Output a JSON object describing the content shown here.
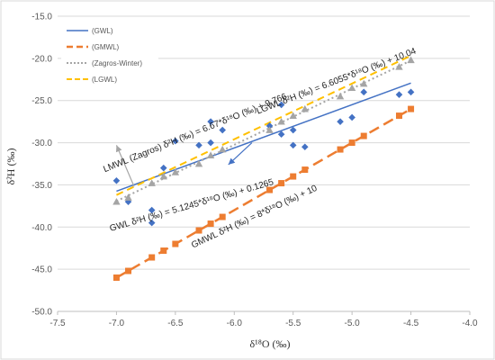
{
  "chart_data": {
    "type": "scatter",
    "title": "",
    "xlabel": "δ¹⁸O (‰)",
    "ylabel": "δ²H (‰)",
    "xlim": [
      -7.5,
      -4.0
    ],
    "ylim": [
      -50.0,
      -15.0
    ],
    "x_ticks": [
      "-7.5",
      "-7.0",
      "-6.5",
      "-6.0",
      "-5.5",
      "-5.0",
      "-4.5",
      "-4.0"
    ],
    "y_ticks": [
      "-15.0",
      "-20.0",
      "-25.0",
      "-30.0",
      "-35.0",
      "-40.0",
      "-45.0",
      "-50.0"
    ],
    "grid": "horizontal",
    "legend": "top-left",
    "legend_entries": [
      "(GWL)",
      "(GMWL)",
      "(Zagros-Winter)",
      "(LGWL)"
    ],
    "colors": {
      "gwl": "#4472C4",
      "gmwl": "#ED7D31",
      "zagros": "#A5A5A5",
      "lgwl": "#FFC000",
      "annotation_arrow": "#A5A5A5",
      "gwl_arrow": "#4472C4"
    },
    "series": [
      {
        "key": "gwl",
        "marker": "diamond",
        "x": [
          -7.0,
          -6.9,
          -6.7,
          -6.7,
          -6.6,
          -6.5,
          -6.3,
          -6.2,
          -6.2,
          -6.1,
          -5.7,
          -5.6,
          -5.6,
          -5.5,
          -5.5,
          -5.4,
          -5.1,
          -5.0,
          -4.9,
          -4.6,
          -4.5
        ],
        "y": [
          -34.5,
          -37.0,
          -38.0,
          -39.5,
          -33.0,
          -29.8,
          -30.3,
          -27.5,
          -30.0,
          -28.5,
          -28.0,
          -25.5,
          -29.0,
          -30.3,
          -28.5,
          -30.5,
          -27.5,
          -27.0,
          -24.0,
          -24.3,
          -24.0
        ]
      },
      {
        "key": "zagros",
        "marker": "triangle",
        "x": [
          -7.0,
          -6.9,
          -6.7,
          -6.6,
          -6.5,
          -6.3,
          -6.2,
          -6.1,
          -5.7,
          -5.6,
          -5.5,
          -5.4,
          -5.1,
          -5.0,
          -4.9,
          -4.6,
          -4.5
        ],
        "y": [
          -37.0,
          -36.5,
          -34.8,
          -34.0,
          -33.5,
          -32.5,
          -31.5,
          -30.8,
          -28.5,
          -27.5,
          -26.8,
          -26.0,
          -24.5,
          -23.5,
          -23.0,
          -21.0,
          -20.2
        ]
      },
      {
        "key": "gmwl_points",
        "marker": "square",
        "x": [
          -7.0,
          -6.9,
          -6.7,
          -6.6,
          -6.5,
          -6.3,
          -6.2,
          -6.1,
          -5.7,
          -5.6,
          -5.5,
          -5.4,
          -5.1,
          -5.0,
          -4.9,
          -4.6,
          -4.5
        ],
        "y": [
          -46.0,
          -45.2,
          -43.6,
          -42.8,
          -42.0,
          -40.4,
          -39.6,
          -38.8,
          -35.6,
          -34.8,
          -34.0,
          -33.2,
          -30.8,
          -30.0,
          -29.2,
          -26.8,
          -26.0
        ]
      }
    ],
    "lines": [
      {
        "key": "gwl_line",
        "style": "solid",
        "x": [
          -7.0,
          -4.5
        ],
        "slope": 5.1245,
        "intercept": 0.1265
      },
      {
        "key": "gmwl_line",
        "style": "dashed",
        "x": [
          -7.0,
          -4.5
        ],
        "slope": 8,
        "intercept": 10
      },
      {
        "key": "zagros_line",
        "style": "dotted",
        "x": [
          -7.0,
          -4.5
        ],
        "slope": 6.67,
        "intercept": 9.766
      },
      {
        "key": "lgwl_line",
        "style": "dashed",
        "x": [
          -7.0,
          -4.5
        ],
        "slope": 6.6055,
        "intercept": 10.04
      }
    ],
    "annotations": [
      {
        "key": "lmwl_eq",
        "text": "LMWL (Zagros)  δ²H (‰) = 6.67*δ¹⁸O (‰) + 9.766",
        "x": -7.1,
        "y": -33.5,
        "angle_deg": -22
      },
      {
        "key": "lgwl_eq",
        "text": "LGWL δ²H (‰) = 6.6055*δ¹⁸O (‰) + 10.04",
        "x": -5.8,
        "y": -26.6,
        "angle_deg": -21
      },
      {
        "key": "gwl_eq",
        "text": "GWL δ²H (‰) = 5.1245*δ¹⁸O (‰) + 0.1265",
        "x": -7.05,
        "y": -40.5,
        "angle_deg": -16
      },
      {
        "key": "gmwl_eq",
        "text": "GMWL δ²H (‰) = 8*δ¹⁸O (‰) + 10",
        "x": -6.35,
        "y": -42.5,
        "angle_deg": -25
      }
    ],
    "arrows": [
      {
        "key": "lmwl_arrow",
        "from": [
          -6.85,
          -35.2
        ],
        "to": [
          -7.0,
          -30.3
        ]
      },
      {
        "key": "gwl_arrow",
        "from": [
          -5.85,
          -30.0
        ],
        "to": [
          -6.05,
          -32.6
        ]
      }
    ]
  }
}
